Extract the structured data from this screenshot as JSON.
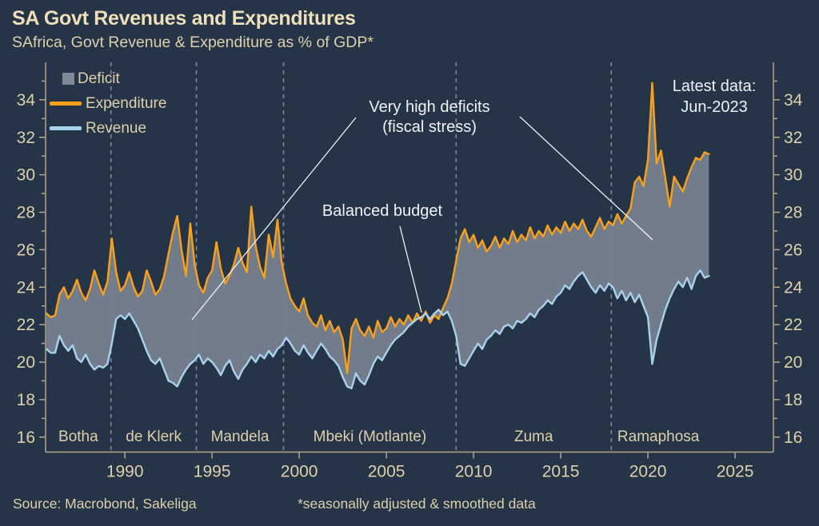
{
  "title": "SA Govt Revenues and Expenditures",
  "subtitle": "SAfrica, Govt Revenue & Expenditure as % of GDP*",
  "footer": {
    "source": "Source: Macrobond, Sakeliga",
    "footnote": "*seasonally adjusted & smoothed data"
  },
  "colors": {
    "background": "#263447",
    "cream": "#dcd0ad",
    "cream_bright": "#ecdfba",
    "white": "#eff3f6",
    "expenditure": "#f9a11b",
    "revenue": "#a9d2ed",
    "deficit_fill": "#76818e",
    "divider": "#7d8996",
    "axis": "#b3a78b"
  },
  "legend": {
    "items": [
      {
        "label": "Deficit",
        "swatch": "square",
        "color": "#7e8995"
      },
      {
        "label": "Expenditure",
        "swatch": "line",
        "color": "#f9a11b"
      },
      {
        "label": "Revenue",
        "swatch": "line",
        "color": "#a9d2ed"
      }
    ]
  },
  "annotations": {
    "very_high_deficits": {
      "line1": "Very high deficits",
      "line2": "(fiscal stress)"
    },
    "balanced_budget": {
      "text": "Balanced budget"
    },
    "latest_data": {
      "line1": "Latest data:",
      "line2": "Jun-2023"
    },
    "pointer_lines": [
      {
        "x1": 445,
        "y1": 147,
        "x2": 240,
        "y2": 400
      },
      {
        "x1": 650,
        "y1": 146,
        "x2": 816,
        "y2": 300
      },
      {
        "x1": 500,
        "y1": 283,
        "x2": 527,
        "y2": 391
      }
    ]
  },
  "chart_data": {
    "type": "line",
    "title": "SA Govt Revenues and Expenditures",
    "subtitle": "SAfrica, Govt Revenue & Expenditure as % of GDP*",
    "xlabel": "",
    "ylabel": "% of GDP",
    "xlim": [
      1985.45,
      2027.2
    ],
    "ylim": [
      15.2,
      36.0
    ],
    "x_ticks": [
      1990,
      1995,
      2000,
      2005,
      2010,
      2015,
      2020,
      2025
    ],
    "y_ticks": [
      16,
      18,
      20,
      22,
      24,
      26,
      28,
      30,
      32,
      34
    ],
    "y_axis_sides": "both",
    "grid": "vertical dashed era dividers only",
    "legend_position": "top-left",
    "latest_data_point": "Jun-2023",
    "x_start": 1985.5,
    "x_step": 0.25,
    "eras": [
      {
        "label": "Botha",
        "start": 1985.45,
        "end": 1989.2
      },
      {
        "label": "de Klerk",
        "start": 1989.2,
        "end": 1994.1
      },
      {
        "label": "Mandela",
        "start": 1994.1,
        "end": 1999.1
      },
      {
        "label": "Mbeki (Motlante)",
        "start": 1999.1,
        "end": 2009.0
      },
      {
        "label": "Zuma",
        "start": 2009.0,
        "end": 2017.9
      },
      {
        "label": "Ramaphosa",
        "start": 2017.9,
        "end": 2023.3
      }
    ],
    "fill_between": {
      "name": "Deficit",
      "color_key": "deficit_fill",
      "between": [
        "Expenditure",
        "Revenue"
      ]
    },
    "series": [
      {
        "name": "Expenditure",
        "color_key": "expenditure",
        "values": [
          22.6,
          22.4,
          22.5,
          23.6,
          24.0,
          23.4,
          23.8,
          24.4,
          23.7,
          23.3,
          23.9,
          24.9,
          24.2,
          23.6,
          24.3,
          26.6,
          24.8,
          23.8,
          24.1,
          24.8,
          24.0,
          23.5,
          23.8,
          24.9,
          24.3,
          23.6,
          23.9,
          24.6,
          25.8,
          26.9,
          27.8,
          26.0,
          24.6,
          27.4,
          25.2,
          24.1,
          23.7,
          24.5,
          24.9,
          26.4,
          25.0,
          24.2,
          24.6,
          25.2,
          26.1,
          25.3,
          24.8,
          28.3,
          26.2,
          25.1,
          24.5,
          26.8,
          25.6,
          27.6,
          25.3,
          24.2,
          23.4,
          23.0,
          22.7,
          23.4,
          22.5,
          22.1,
          21.9,
          22.5,
          21.7,
          22.2,
          21.6,
          21.9,
          21.2,
          19.4,
          21.8,
          22.3,
          21.7,
          21.4,
          21.9,
          21.3,
          22.2,
          21.6,
          21.8,
          22.4,
          21.9,
          22.3,
          22.0,
          22.5,
          22.1,
          22.6,
          22.2,
          22.7,
          22.1,
          22.5,
          22.3,
          22.9,
          23.4,
          24.2,
          25.4,
          26.6,
          27.1,
          26.4,
          26.8,
          26.1,
          26.5,
          25.9,
          26.2,
          26.7,
          26.1,
          26.6,
          26.3,
          27.0,
          26.4,
          26.8,
          26.5,
          27.2,
          26.6,
          27.0,
          26.7,
          27.3,
          26.8,
          27.2,
          26.9,
          27.5,
          27.0,
          27.4,
          27.1,
          27.6,
          27.0,
          26.7,
          27.2,
          27.7,
          27.1,
          27.5,
          27.3,
          27.9,
          27.4,
          27.8,
          28.2,
          29.6,
          29.9,
          29.4,
          30.8,
          34.9,
          30.6,
          31.3,
          29.8,
          28.3,
          29.9,
          29.5,
          29.1,
          29.8,
          30.4,
          30.9,
          30.8,
          31.2,
          31.1
        ]
      },
      {
        "name": "Revenue",
        "color_key": "revenue",
        "values": [
          20.7,
          20.5,
          20.5,
          21.4,
          20.9,
          20.6,
          20.9,
          20.2,
          20.0,
          20.4,
          19.9,
          19.6,
          19.8,
          19.7,
          19.9,
          21.0,
          22.3,
          22.5,
          22.3,
          22.6,
          22.2,
          21.8,
          21.2,
          20.6,
          20.1,
          19.9,
          20.2,
          19.6,
          19.0,
          18.9,
          18.7,
          19.2,
          19.6,
          19.9,
          20.1,
          20.4,
          19.9,
          20.2,
          20.0,
          19.7,
          19.3,
          19.8,
          20.1,
          19.5,
          19.1,
          19.6,
          19.9,
          20.3,
          20.0,
          20.4,
          20.2,
          20.6,
          20.3,
          20.7,
          20.9,
          21.3,
          21.0,
          20.6,
          20.4,
          20.9,
          20.5,
          20.2,
          20.6,
          21.0,
          20.7,
          20.3,
          20.1,
          19.8,
          19.2,
          18.7,
          18.6,
          19.4,
          19.0,
          18.8,
          19.3,
          19.9,
          20.3,
          20.1,
          20.5,
          20.9,
          21.2,
          21.4,
          21.6,
          21.9,
          22.1,
          22.3,
          22.4,
          22.6,
          22.3,
          22.6,
          22.8,
          22.5,
          22.7,
          22.2,
          21.4,
          19.9,
          19.8,
          20.2,
          20.6,
          21.0,
          20.7,
          21.2,
          21.4,
          21.7,
          21.5,
          21.9,
          22.0,
          21.8,
          22.2,
          22.1,
          22.3,
          22.6,
          22.4,
          22.8,
          23.0,
          23.3,
          23.1,
          23.5,
          23.7,
          24.1,
          23.9,
          24.3,
          24.6,
          24.8,
          24.4,
          24.0,
          23.7,
          24.1,
          23.8,
          24.2,
          24.0,
          23.4,
          23.8,
          23.3,
          23.7,
          23.2,
          23.6,
          23.0,
          22.4,
          19.9,
          21.2,
          22.0,
          22.8,
          23.4,
          23.9,
          24.3,
          24.0,
          24.5,
          23.9,
          24.6,
          24.9,
          24.5,
          24.6
        ]
      }
    ]
  }
}
